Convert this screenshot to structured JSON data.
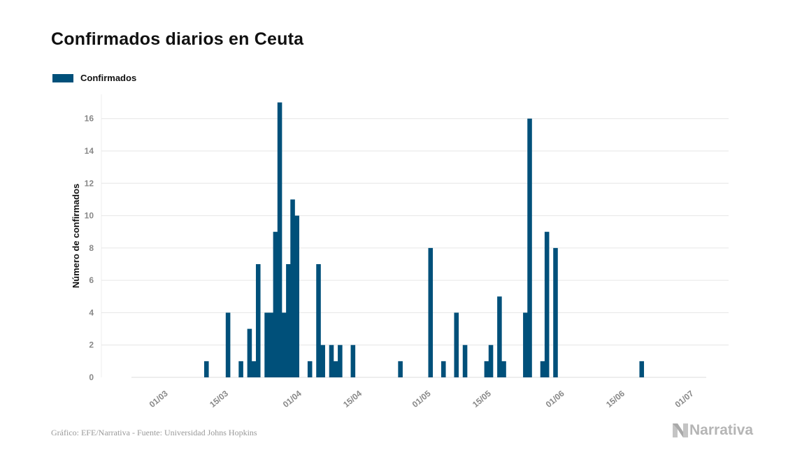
{
  "colors": {
    "bar": "#00507a",
    "grid": "#e6e6e6",
    "tick": "#888888",
    "axis_title": "#111111"
  },
  "header": {
    "title": "Confirmados diarios en Ceuta"
  },
  "footer": {
    "source": "Gráfico: EFE/Narrativa - Fuente: Universidad Johns Hopkins",
    "brand": "Narrativa"
  },
  "chart_data": {
    "type": "bar",
    "title": "Confirmados diarios en Ceuta",
    "xlabel": "",
    "ylabel": "Número de confirmados",
    "ylim": [
      0,
      17.5
    ],
    "y_ticks": [
      0,
      2,
      4,
      6,
      8,
      10,
      12,
      14,
      16
    ],
    "grid": true,
    "legend_position": "top-left",
    "x_tick_labels": [
      "01/03",
      "15/03",
      "01/04",
      "15/04",
      "01/05",
      "15/05",
      "01/06",
      "15/06",
      "01/07"
    ],
    "x_tick_dates": [
      "2020-03-01",
      "2020-03-15",
      "2020-04-01",
      "2020-04-15",
      "2020-05-01",
      "2020-05-15",
      "2020-06-01",
      "2020-06-15",
      "2020-07-01"
    ],
    "x_range": [
      "2020-02-22",
      "2020-07-06"
    ],
    "series": [
      {
        "name": "Confirmados",
        "points": [
          [
            "2020-03-12",
            1
          ],
          [
            "2020-03-17",
            4
          ],
          [
            "2020-03-20",
            1
          ],
          [
            "2020-03-22",
            3
          ],
          [
            "2020-03-23",
            1
          ],
          [
            "2020-03-24",
            7
          ],
          [
            "2020-03-26",
            4
          ],
          [
            "2020-03-27",
            4
          ],
          [
            "2020-03-28",
            9
          ],
          [
            "2020-03-29",
            17
          ],
          [
            "2020-03-30",
            4
          ],
          [
            "2020-03-31",
            7
          ],
          [
            "2020-04-01",
            11
          ],
          [
            "2020-04-02",
            10
          ],
          [
            "2020-04-05",
            1
          ],
          [
            "2020-04-07",
            7
          ],
          [
            "2020-04-08",
            2
          ],
          [
            "2020-04-10",
            2
          ],
          [
            "2020-04-11",
            1
          ],
          [
            "2020-04-12",
            2
          ],
          [
            "2020-04-15",
            2
          ],
          [
            "2020-04-26",
            1
          ],
          [
            "2020-05-03",
            8
          ],
          [
            "2020-05-06",
            1
          ],
          [
            "2020-05-09",
            4
          ],
          [
            "2020-05-11",
            2
          ],
          [
            "2020-05-16",
            1
          ],
          [
            "2020-05-17",
            2
          ],
          [
            "2020-05-19",
            5
          ],
          [
            "2020-05-20",
            1
          ],
          [
            "2020-05-25",
            4
          ],
          [
            "2020-05-26",
            16
          ],
          [
            "2020-05-29",
            1
          ],
          [
            "2020-05-30",
            9
          ],
          [
            "2020-06-01",
            8
          ],
          [
            "2020-06-21",
            1
          ]
        ]
      }
    ]
  }
}
